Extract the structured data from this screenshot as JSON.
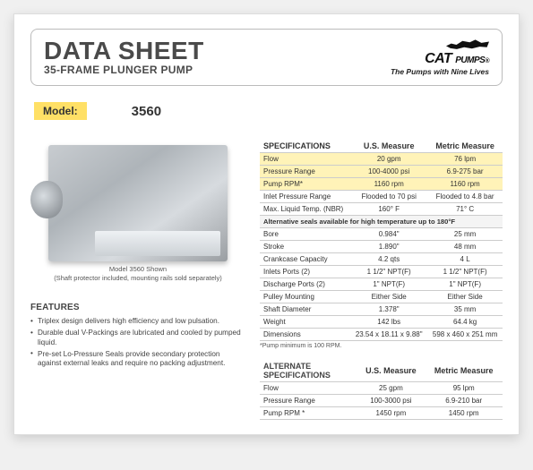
{
  "header": {
    "title": "DATA SHEET",
    "subtitle": "35-FRAME PLUNGER PUMP",
    "brand_top": "CAT",
    "brand_bottom": "PUMPS",
    "tagline": "The Pumps with Nine Lives"
  },
  "model": {
    "label": "Model:",
    "value": "3560"
  },
  "image_caption": {
    "line1": "Model 3560 Shown",
    "line2": "(Shaft protector included, mounting rails sold separately)"
  },
  "features": {
    "heading": "FEATURES",
    "items": [
      "Triplex design delivers high efficiency and low pulsation.",
      "Durable dual V-Packings are lubricated and cooled by pumped liquid.",
      "Pre-set Lo-Pressure Seals provide secondary protection against external leaks and require no packing adjustment."
    ]
  },
  "specs": {
    "heading": "SPECIFICATIONS",
    "col_us": "U.S. Measure",
    "col_metric": "Metric Measure",
    "rows": [
      {
        "label": "Flow",
        "us": "20 gpm",
        "metric": "76 lpm",
        "hl": true
      },
      {
        "label": "Pressure Range",
        "us": "100-4000 psi",
        "metric": "6.9-275 bar",
        "hl": true
      },
      {
        "label": "Pump RPM*",
        "us": "1160 rpm",
        "metric": "1160 rpm",
        "hl": true
      },
      {
        "label": "Inlet Pressure Range",
        "us": "Flooded to 70 psi",
        "metric": "Flooded to 4.8 bar",
        "hl": false
      },
      {
        "label": "Max. Liquid Temp. (NBR)",
        "us": "160° F",
        "metric": "71° C",
        "hl": false
      }
    ],
    "sub_banner": "Alternative seals available for high temperature up to 180°F",
    "rows2": [
      {
        "label": "Bore",
        "us": "0.984\"",
        "metric": "25 mm"
      },
      {
        "label": "Stroke",
        "us": "1.890\"",
        "metric": "48 mm"
      },
      {
        "label": "Crankcase Capacity",
        "us": "4.2 qts",
        "metric": "4 L"
      },
      {
        "label": "Inlets Ports (2)",
        "us": "1 1/2\" NPT(F)",
        "metric": "1 1/2\" NPT(F)"
      },
      {
        "label": "Discharge Ports (2)",
        "us": "1\" NPT(F)",
        "metric": "1\" NPT(F)"
      },
      {
        "label": "Pulley Mounting",
        "us": "Either Side",
        "metric": "Either Side"
      },
      {
        "label": "Shaft Diameter",
        "us": "1.378\"",
        "metric": "35 mm"
      },
      {
        "label": "Weight",
        "us": "142 lbs",
        "metric": "64.4 kg"
      },
      {
        "label": "Dimensions",
        "us": "23.54 x 18.11 x 9.88\"",
        "metric": "598 x 460 x 251 mm"
      }
    ],
    "footnote": "*Pump minimum is 100 RPM."
  },
  "alt": {
    "heading": "ALTERNATE SPECIFICATIONS",
    "col_us": "U.S. Measure",
    "col_metric": "Metric Measure",
    "rows": [
      {
        "label": "Flow",
        "us": "25 gpm",
        "metric": "95 lpm"
      },
      {
        "label": "Pressure Range",
        "us": "100-3000 psi",
        "metric": "6.9-210 bar"
      },
      {
        "label": "Pump RPM *",
        "us": "1450 rpm",
        "metric": "1450 rpm"
      }
    ]
  }
}
